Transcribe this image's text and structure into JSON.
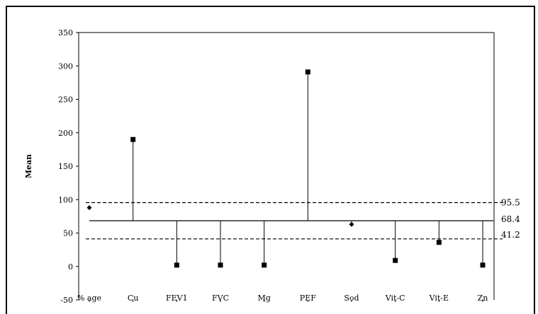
{
  "chart_data": {
    "type": "scatter",
    "subtype": "analysis-of-means",
    "title": "",
    "xlabel": "",
    "ylabel": "Mean",
    "ylim": [
      -50,
      350
    ],
    "yticks": [
      -50,
      0,
      50,
      100,
      150,
      200,
      250,
      300,
      350
    ],
    "categories": [
      "% age",
      "Cu",
      "FEV1",
      "FVC",
      "Mg",
      "PEF",
      "Sod",
      "Vit-C",
      "Vit-E",
      "Zn"
    ],
    "values": [
      88,
      190,
      2,
      2,
      2,
      291,
      63,
      9,
      36,
      2
    ],
    "marker_shapes": [
      "diamond",
      "square",
      "square",
      "square",
      "square",
      "square",
      "diamond",
      "square",
      "square",
      "square"
    ],
    "center_line": {
      "value": 68.4,
      "label": "68.4"
    },
    "upper_limit": {
      "value": 95.5,
      "label": "95.5"
    },
    "lower_limit": {
      "value": 41.2,
      "label": "41.2"
    },
    "grid": false,
    "legend": "none",
    "colors": {
      "marks": "#000000",
      "background": "#ffffff"
    }
  }
}
